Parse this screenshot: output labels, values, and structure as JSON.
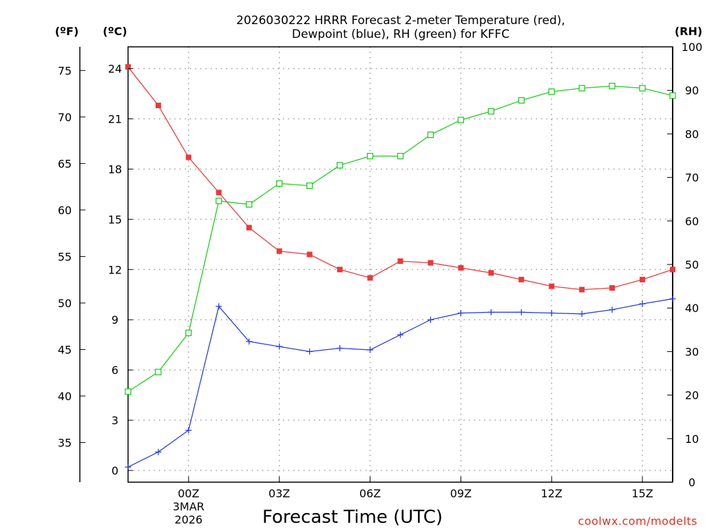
{
  "chart_data": {
    "type": "line",
    "title_lines": [
      "2026030222 HRRR Forecast 2-meter Temperature (red),",
      "Dewpoint (blue), RH (green) for KFFC"
    ],
    "xlabel": "Forecast Time (UTC)",
    "x_ticks": [
      {
        "hour": 2,
        "lines": [
          "00Z",
          "3MAR",
          "2026"
        ]
      },
      {
        "hour": 5,
        "lines": [
          "03Z"
        ]
      },
      {
        "hour": 8,
        "lines": [
          "06Z"
        ]
      },
      {
        "hour": 11,
        "lines": [
          "09Z"
        ]
      },
      {
        "hour": 14,
        "lines": [
          "12Z"
        ]
      },
      {
        "hour": 17,
        "lines": [
          "15Z"
        ]
      }
    ],
    "x_range": [
      0,
      18
    ],
    "x": [
      0,
      1,
      2,
      3,
      4,
      5,
      6,
      7,
      8,
      9,
      10,
      11,
      12,
      13,
      14,
      15,
      16,
      17,
      18
    ],
    "axes": {
      "fahrenheit": {
        "unit_label": "(ºF)",
        "ticks": [
          35,
          40,
          45,
          50,
          55,
          60,
          65,
          70,
          75
        ]
      },
      "celsius": {
        "unit_label": "(ºC)",
        "range": [
          -0.7,
          25.3
        ],
        "ticks": [
          0,
          3,
          6,
          9,
          12,
          15,
          18,
          21,
          24
        ]
      },
      "rh": {
        "unit_label": "(RH)",
        "range": [
          0,
          100
        ],
        "ticks": [
          0,
          10,
          20,
          30,
          40,
          50,
          60,
          70,
          80,
          90,
          100
        ]
      }
    },
    "series": [
      {
        "name": "Temperature",
        "axis": "celsius",
        "color": "#e83a3a",
        "marker": "filled-square",
        "values": [
          24.1,
          21.8,
          18.7,
          16.6,
          14.5,
          13.1,
          12.9,
          12.0,
          11.5,
          12.5,
          12.4,
          12.1,
          11.8,
          11.4,
          11.0,
          10.8,
          10.9,
          11.4,
          12.0
        ]
      },
      {
        "name": "Dewpoint",
        "axis": "celsius",
        "color": "#2a3fe0",
        "marker": "plus",
        "values": [
          0.2,
          1.1,
          2.4,
          9.8,
          7.7,
          7.4,
          7.1,
          7.3,
          7.2,
          8.1,
          9.0,
          9.4,
          9.45,
          9.45,
          9.4,
          9.35,
          9.6,
          9.95,
          10.25
        ]
      },
      {
        "name": "RH",
        "axis": "rh",
        "color": "#22cc22",
        "marker": "open-square",
        "values": [
          20.8,
          25.3,
          34.3,
          64.6,
          63.8,
          68.6,
          68.1,
          72.8,
          74.9,
          74.9,
          79.8,
          83.2,
          85.2,
          87.7,
          89.7,
          90.5,
          91.0,
          90.5,
          88.8
        ]
      }
    ]
  },
  "credit": "coolwx.com/modelts",
  "colors": {
    "grid": "#9a9a9a",
    "axis": "#000000"
  }
}
